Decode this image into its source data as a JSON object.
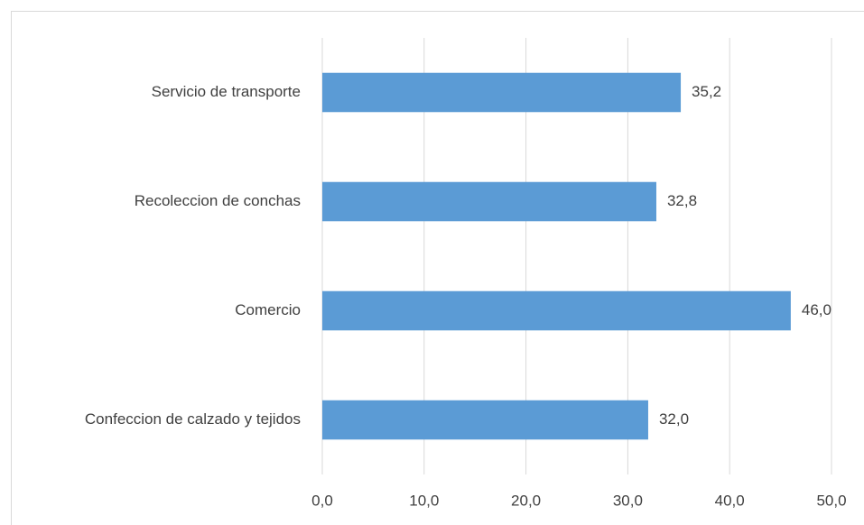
{
  "chart_data": {
    "type": "barh",
    "categories": [
      "Servicio de transporte",
      "Recoleccion de conchas",
      "Comercio",
      "Confeccion de calzado y tejidos"
    ],
    "values": [
      35.2,
      32.8,
      46.0,
      32.0
    ],
    "value_labels": [
      "35,2",
      "32,8",
      "46,0",
      "32,0"
    ],
    "color": "#5b9bd5",
    "xlim": [
      0,
      50
    ],
    "xticks": [
      {
        "value": 0,
        "label": "0,0"
      },
      {
        "value": 10,
        "label": "10,0"
      },
      {
        "value": 20,
        "label": "20,0"
      },
      {
        "value": 30,
        "label": "30,0"
      },
      {
        "value": 40,
        "label": "40,0"
      },
      {
        "value": 50,
        "label": "50,0"
      }
    ],
    "grid": true
  }
}
